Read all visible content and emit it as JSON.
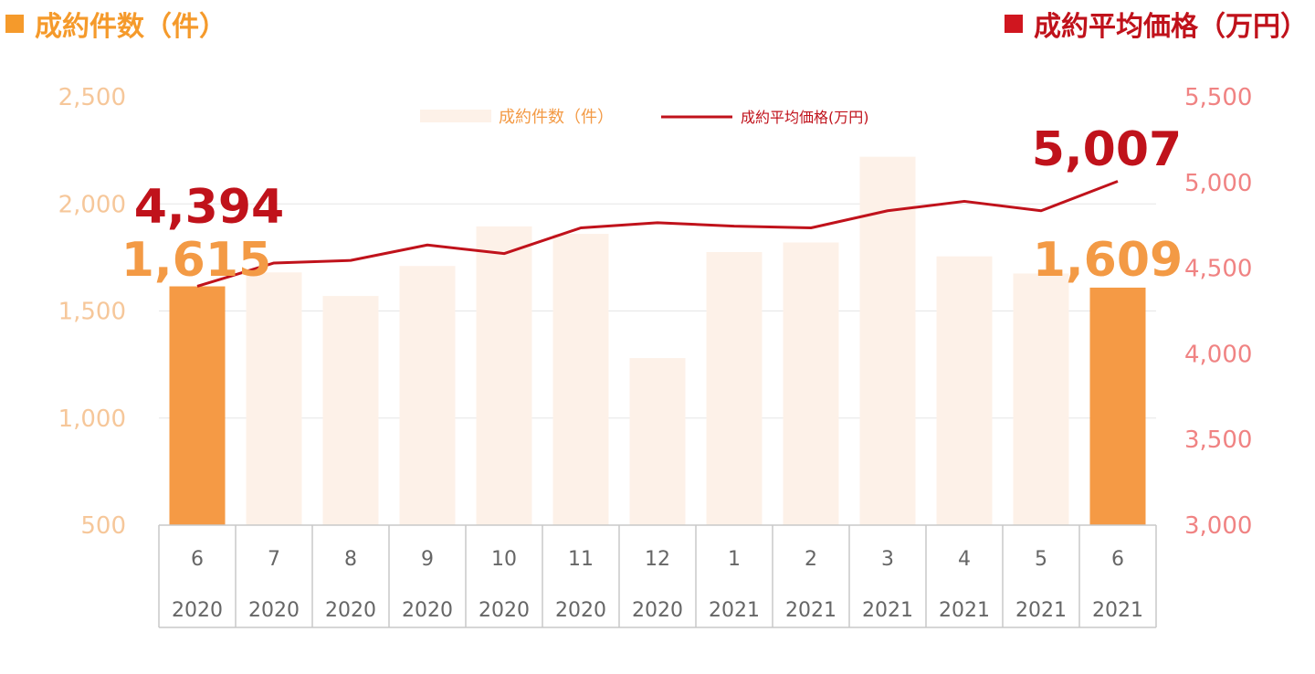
{
  "header": {
    "left_title": "成約件数（件）",
    "left_color": "#f59a2b",
    "right_title": "成約平均価格（万円）",
    "right_color": "#c0121b"
  },
  "chart_data": {
    "type": "bar",
    "combo": "bar+line",
    "categories": [
      "6",
      "7",
      "8",
      "9",
      "10",
      "11",
      "12",
      "1",
      "2",
      "3",
      "4",
      "5",
      "6"
    ],
    "years": [
      "2020",
      "2020",
      "2020",
      "2020",
      "2020",
      "2020",
      "2020",
      "2021",
      "2021",
      "2021",
      "2021",
      "2021",
      "2021"
    ],
    "series": [
      {
        "name": "成約件数（件）",
        "type": "bar",
        "axis": "left",
        "color": "#fdf1e8",
        "highlight_color": "#f59a45",
        "highlight_indices": [
          0,
          12
        ],
        "values": [
          1615,
          1680,
          1570,
          1710,
          1895,
          1860,
          1280,
          1775,
          1820,
          2220,
          1755,
          1675,
          1609
        ]
      },
      {
        "name": "成約平均価格(万円)",
        "type": "line",
        "axis": "right",
        "color": "#c0121b",
        "values": [
          4394,
          4530,
          4545,
          4635,
          4585,
          4735,
          4765,
          4745,
          4735,
          4835,
          4890,
          4835,
          5007
        ]
      }
    ],
    "left_axis": {
      "min": 500,
      "max": 2500,
      "ticks": [
        "500",
        "1,000",
        "1,500",
        "2,000",
        "2,500"
      ],
      "color": "#f6c79a"
    },
    "right_axis": {
      "min": 3000,
      "max": 5500,
      "ticks": [
        "3,000",
        "3,500",
        "4,000",
        "4,500",
        "5,000",
        "5,500"
      ],
      "color": "#f08383"
    },
    "data_labels": {
      "count_first": "1,615",
      "count_last": "1,609",
      "price_first": "4,394",
      "price_last": "5,007"
    },
    "legend_placement": "top-center",
    "grid": true
  }
}
